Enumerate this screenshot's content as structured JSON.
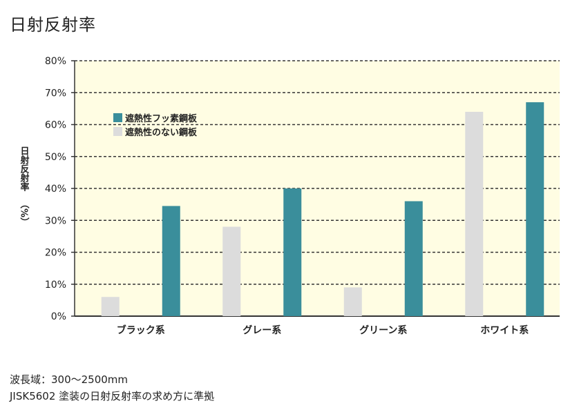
{
  "title": "日射反射率",
  "notes": {
    "line1": "波長域：300～2500mm",
    "line2": "JISK5602 塗装の日射反射率の求め方に準拠"
  },
  "chart_data": {
    "type": "bar",
    "ylabel": "日射反射率",
    "ylabel_unit": "（%）",
    "ylim": [
      0,
      80
    ],
    "yticks": [
      0,
      10,
      20,
      30,
      40,
      50,
      60,
      70,
      80
    ],
    "ytick_suffix": "%",
    "grid": true,
    "plot_background": "#fffde3",
    "legend_position": "top-left",
    "categories": [
      "ブラック系",
      "グレー系",
      "グリーン系",
      "ホワイト系"
    ],
    "series": [
      {
        "name": "遮熱性のない鋼板",
        "color": "#dcdcdc",
        "values": [
          6,
          28,
          9,
          64
        ]
      },
      {
        "name": "遮熱性フッ素鋼板",
        "color": "#3a8e9b",
        "values": [
          34.5,
          40,
          36,
          67
        ]
      }
    ],
    "legend_order": [
      1,
      0
    ]
  }
}
